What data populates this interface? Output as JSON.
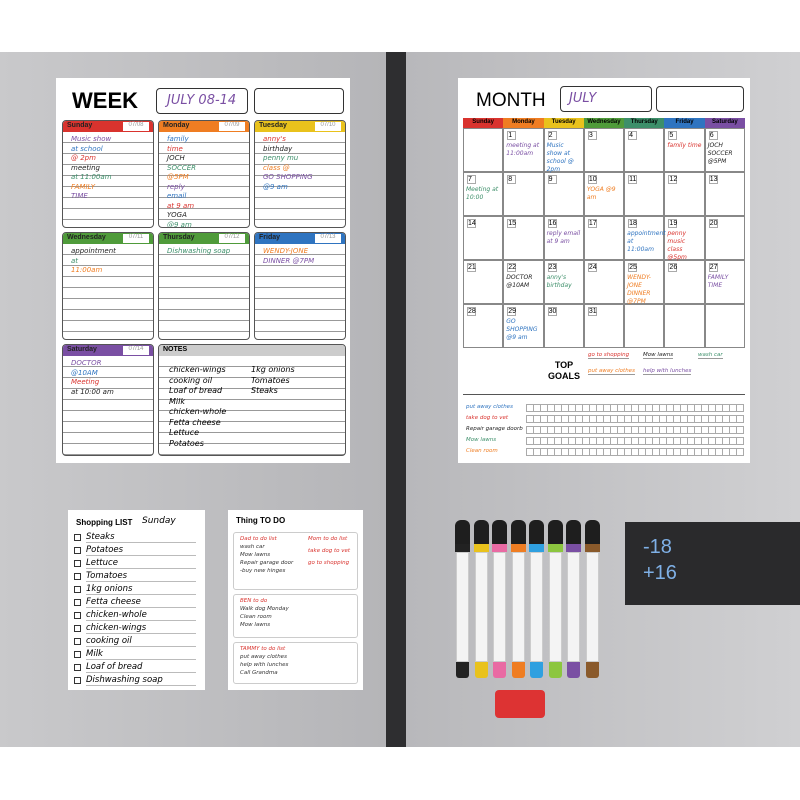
{
  "week": {
    "title": "WEEK",
    "date": "JULY 08-14",
    "notes_title": "NOTES",
    "days": [
      {
        "name": "Sunday",
        "date": "07/08",
        "color": "#d9332e",
        "notes": [
          "Music show",
          "at school",
          "@ 2pm",
          "meeting",
          "at 11:00am",
          "FAMILY",
          "TIME"
        ]
      },
      {
        "name": "Monday",
        "date": "07/09",
        "color": "#ef7d22",
        "notes": [
          "family",
          "time",
          "JOCH",
          "SOCCER",
          "@5PM",
          "reply",
          "email",
          "at 9 am",
          "YOGA",
          "@9 am"
        ]
      },
      {
        "name": "Tuesday",
        "date": "07/10",
        "color": "#e9c21c",
        "notes": [
          "anny's",
          "birthday",
          "penny mu",
          "class @",
          "GO SHOPPING",
          "@9 am"
        ]
      },
      {
        "name": "Wednesday",
        "date": "07/11",
        "color": "#4f9b3a",
        "notes": [
          "appointment",
          "at",
          "11:00am"
        ]
      },
      {
        "name": "Thursday",
        "date": "07/12",
        "color": "#4f9b3a",
        "notes": [
          "Dishwashing soap"
        ]
      },
      {
        "name": "Friday",
        "date": "07/13",
        "color": "#2f74c0",
        "notes": [
          "WENDY-JONE",
          "DINNER @7PM"
        ]
      },
      {
        "name": "Saturday",
        "date": "07/14",
        "color": "#7a4fa3",
        "notes": [
          "DOCTOR",
          "@10AM",
          "Meeting",
          "at 10:00 am"
        ]
      }
    ],
    "notes": [
      "chicken-wings",
      "cooking oil",
      "Loaf of bread",
      "Milk",
      "chicken-whole",
      "Fetta cheese",
      "Lettuce",
      "Potatoes"
    ],
    "notes_right": [
      "1kg onions",
      "Tomatoes",
      "Steaks"
    ]
  },
  "month": {
    "title": "MONTH",
    "month": "JULY",
    "weekdays": [
      {
        "name": "Sunday",
        "color": "#d9332e"
      },
      {
        "name": "Monday",
        "color": "#ef7d22"
      },
      {
        "name": "Tuesday",
        "color": "#e9c21c"
      },
      {
        "name": "Wednesday",
        "color": "#4f9b3a"
      },
      {
        "name": "Thursday",
        "color": "#3d8f6a"
      },
      {
        "name": "Friday",
        "color": "#2f74c0"
      },
      {
        "name": "Saturday",
        "color": "#7a4fa3"
      }
    ],
    "cells": [
      [
        null,
        "1",
        "2",
        "3",
        "4",
        "5",
        "6"
      ],
      [
        "7",
        "8",
        "9",
        "10",
        "11",
        "12",
        "13"
      ],
      [
        "14",
        "15",
        "16",
        "17",
        "18",
        "19",
        "20"
      ],
      [
        "21",
        "22",
        "23",
        "24",
        "25",
        "26",
        "27"
      ],
      [
        "28",
        "29",
        "30",
        "31",
        null,
        null,
        null
      ]
    ],
    "events": [
      {
        "row": 0,
        "col": 1,
        "text": "meeting at 11:00am"
      },
      {
        "row": 0,
        "col": 2,
        "text": "Music show at school @ 2pm"
      },
      {
        "row": 0,
        "col": 5,
        "text": "family time"
      },
      {
        "row": 0,
        "col": 6,
        "text": "JOCH SOCCER @5PM"
      },
      {
        "row": 1,
        "col": 0,
        "text": "Meeting at 10:00"
      },
      {
        "row": 1,
        "col": 3,
        "text": "YOGA @9 am"
      },
      {
        "row": 2,
        "col": 2,
        "text": "reply email at 9 am"
      },
      {
        "row": 2,
        "col": 4,
        "text": "appointment at 11:00am"
      },
      {
        "row": 2,
        "col": 5,
        "text": "penny music class @5pm"
      },
      {
        "row": 3,
        "col": 1,
        "text": "DOCTOR @10AM"
      },
      {
        "row": 3,
        "col": 2,
        "text": "anny's birthday"
      },
      {
        "row": 3,
        "col": 4,
        "text": "WENDY-JONE DINNER @7PM"
      },
      {
        "row": 3,
        "col": 6,
        "text": "FAMILY TIME"
      },
      {
        "row": 4,
        "col": 1,
        "text": "GO SHOPPING @9 am"
      }
    ],
    "goals_title": "TOP GOALS",
    "goals": [
      "go to shopping",
      "Mow lawns",
      "wash car",
      "put away clothes",
      "help with lunches"
    ],
    "habits": [
      "put away clothes",
      "take dog to vet",
      "Repair garage doorb",
      "Mow lawns",
      "Clean room"
    ]
  },
  "shopping": {
    "title": "Shopping LIST",
    "day": "Sunday",
    "items": [
      "Steaks",
      "Potatoes",
      "Lettuce",
      "Tomatoes",
      "1kg onions",
      "Fetta cheese",
      "chicken-whole",
      "chicken-wings",
      "cooking oil",
      "Milk",
      "Loaf of bread",
      "Dishwashing soap"
    ]
  },
  "todo": {
    "title": "Thing TO DO",
    "sections": [
      {
        "items": [
          "Dad to do list",
          "wash car",
          "Mow lawns",
          "Repair garage door",
          "-buy new hinges"
        ],
        "side": [
          "Mom to do list",
          "take dog to vet",
          "go to shopping"
        ]
      },
      {
        "items": [
          "BEN to do",
          "Walk dog Monday",
          "Clean room",
          "Mow lawns"
        ]
      },
      {
        "items": [
          "TAMMY to do list",
          "put away clothes",
          "help with lunches",
          "Call Grandma"
        ]
      }
    ]
  },
  "magnet": {
    "lines": [
      "-18",
      "+16"
    ]
  }
}
